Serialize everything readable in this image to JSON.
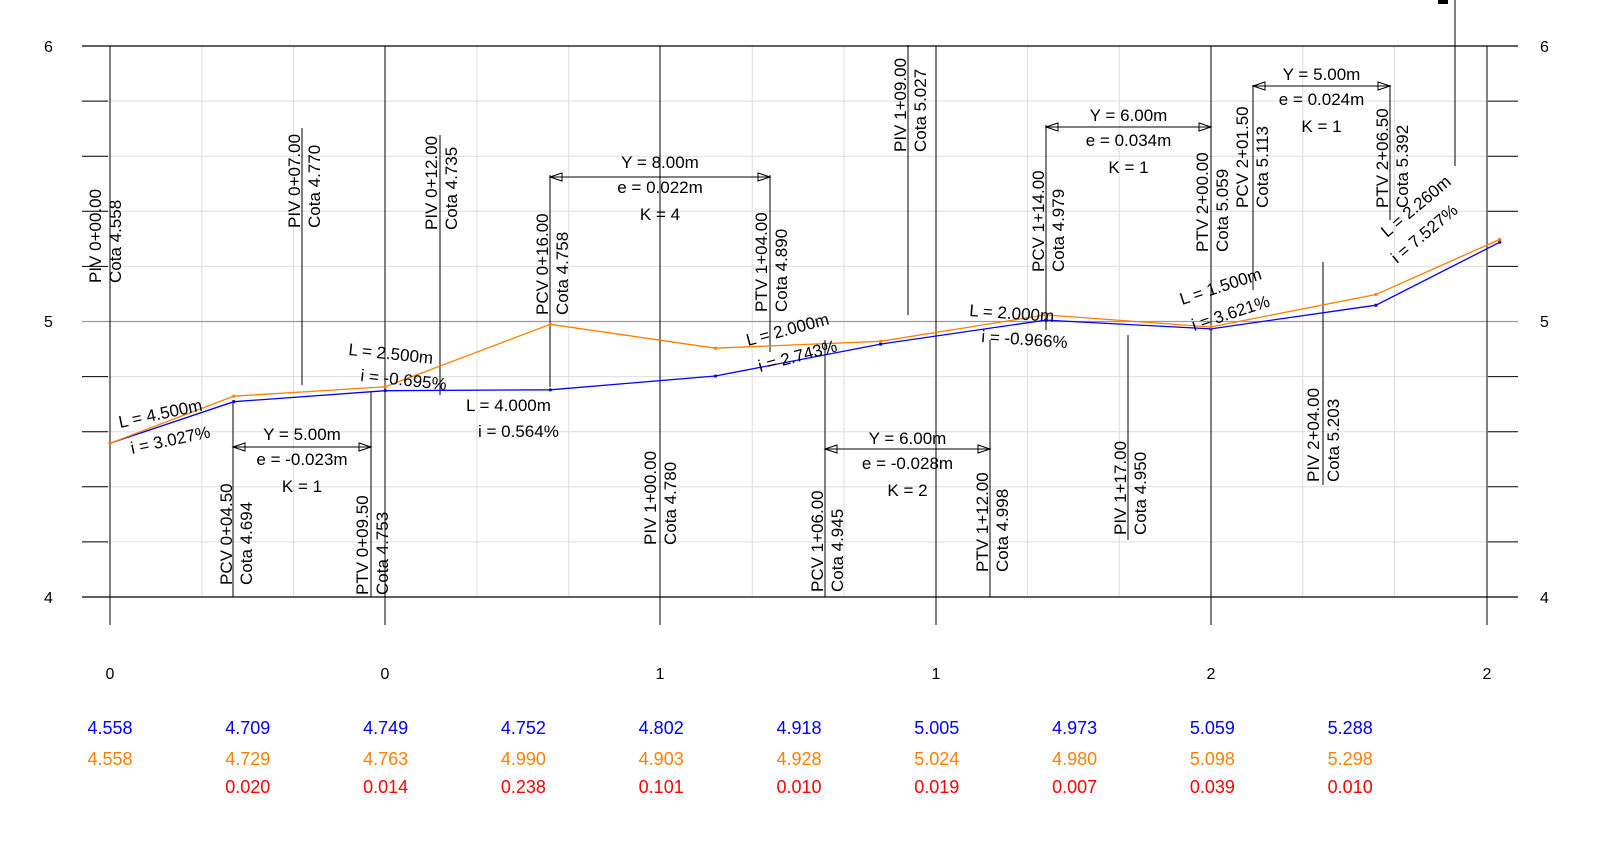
{
  "chart_data": {
    "type": "line",
    "ylim": [
      4,
      6
    ],
    "y_ticks": [
      "4",
      "5",
      "6"
    ],
    "x_tick_labels": [
      "0",
      "0",
      "1",
      "1",
      "2",
      "2"
    ],
    "series": [
      {
        "color": "#0000ff",
        "style": "design grade line (smooth)",
        "x": [
          0,
          4.5,
          10,
          16,
          22,
          28,
          34,
          40,
          46,
          50.5
        ],
        "y": [
          4.558,
          4.709,
          4.749,
          4.752,
          4.802,
          4.918,
          5.005,
          4.973,
          5.059,
          5.288
        ]
      },
      {
        "color": "#ff8000",
        "style": "terrain line",
        "x": [
          0,
          4.5,
          10,
          16,
          22,
          28,
          34,
          40,
          46,
          50.5
        ],
        "y": [
          4.558,
          4.729,
          4.763,
          4.99,
          4.903,
          4.928,
          5.024,
          4.98,
          5.098,
          5.298
        ]
      }
    ],
    "value_table": {
      "design": [
        "4.558",
        "4.709",
        "4.749",
        "4.752",
        "4.802",
        "4.918",
        "5.005",
        "4.973",
        "5.059",
        "5.288"
      ],
      "terrain": [
        "4.558",
        "4.729",
        "4.763",
        "4.990",
        "4.903",
        "4.928",
        "5.024",
        "4.980",
        "5.098",
        "5.298"
      ],
      "difference": [
        "",
        "0.020",
        "0.014",
        "0.238",
        "0.101",
        "0.010",
        "0.019",
        "0.007",
        "0.039",
        "0.010"
      ],
      "colors": {
        "design": "#0000ff",
        "terrain": "#ff8000",
        "difference": "#ff0000"
      }
    },
    "station_labels": [
      {
        "st": "PIV 0+00.00",
        "cota": "Cota 4.558"
      },
      {
        "st": "PCV 0+04.50",
        "cota": "Cota 4.694"
      },
      {
        "st": "PIV 0+07.00",
        "cota": "Cota 4.770"
      },
      {
        "st": "PTV 0+09.50",
        "cota": "Cota 4.753"
      },
      {
        "st": "PIV 0+12.00",
        "cota": "Cota 4.735"
      },
      {
        "st": "PCV 0+16.00",
        "cota": "Cota 4.758"
      },
      {
        "st": "PIV 1+00.00",
        "cota": "Cota 4.780"
      },
      {
        "st": "PTV 1+04.00",
        "cota": "Cota 4.890"
      },
      {
        "st": "PCV 1+06.00",
        "cota": "Cota 4.945"
      },
      {
        "st": "PIV 1+09.00",
        "cota": "Cota 5.027"
      },
      {
        "st": "PTV 1+12.00",
        "cota": "Cota 4.998"
      },
      {
        "st": "PCV 1+14.00",
        "cota": "Cota 4.979"
      },
      {
        "st": "PIV 1+17.00",
        "cota": "Cota 4.950"
      },
      {
        "st": "PTV 2+00.00",
        "cota": "Cota 5.059"
      },
      {
        "st": "PCV 2+01.50",
        "cota": "Cota 5.113"
      },
      {
        "st": "PIV 2+04.00",
        "cota": "Cota 5.203"
      },
      {
        "st": "PTV 2+06.50",
        "cota": "Cota 5.392"
      }
    ],
    "grade_labels": [
      {
        "L": "L = 4.500m",
        "i": "i = 3.027%"
      },
      {
        "L": "L = 2.500m",
        "i": "i = -0.695%"
      },
      {
        "L": "L = 4.000m",
        "i": "i = 0.564%"
      },
      {
        "L": "L = 2.000m",
        "i": "i = 2.743%"
      },
      {
        "L": "L = 2.000m",
        "i": "i = -0.966%"
      },
      {
        "L": "L = 1.500m",
        "i": "i = 3.621%"
      },
      {
        "L": "L = 2.260m",
        "i": "i = 7.527%"
      }
    ],
    "curve_labels": [
      {
        "Y": "Y = 5.00m",
        "e": "e = -0.023m",
        "K": "K = 1"
      },
      {
        "Y": "Y = 8.00m",
        "e": "e = 0.022m",
        "K": "K = 4"
      },
      {
        "Y": "Y = 6.00m",
        "e": "e = -0.028m",
        "K": "K = 2"
      },
      {
        "Y": "Y = 6.00m",
        "e": "e = 0.034m",
        "K": "K = 1"
      },
      {
        "Y": "Y = 5.00m",
        "e": "e = 0.024m",
        "K": "K = 1"
      }
    ]
  }
}
